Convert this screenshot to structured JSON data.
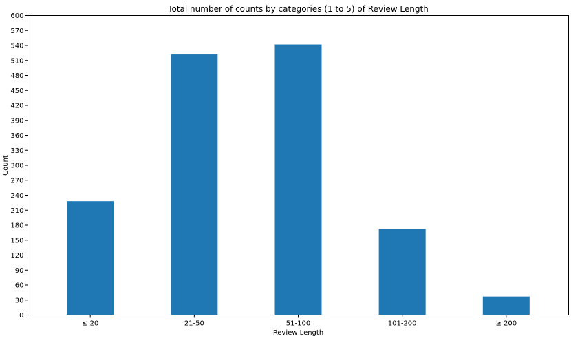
{
  "chart_data": {
    "type": "bar",
    "title": "Total number of counts by categories (1 to 5) of Review Length",
    "xlabel": "Review Length",
    "ylabel": "Count",
    "categories": [
      "≤ 20",
      "21-50",
      "51-100",
      "101-200",
      "≥ 200"
    ],
    "values": [
      228,
      522,
      542,
      173,
      37
    ],
    "ylim": [
      0,
      600
    ],
    "yticks": [
      0,
      30,
      60,
      90,
      120,
      150,
      180,
      210,
      240,
      270,
      300,
      330,
      360,
      390,
      420,
      450,
      480,
      510,
      540,
      570,
      600
    ],
    "bar_color": "#1f77b4",
    "grid": false,
    "legend": "none"
  }
}
